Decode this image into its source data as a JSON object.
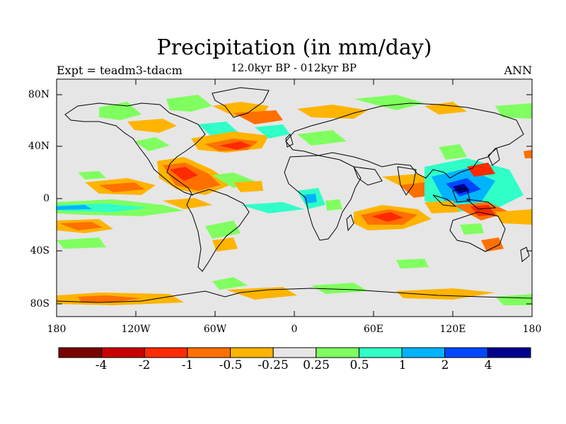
{
  "title": "Precipitation (in mm/day)",
  "subtitle": "12.0kyr BP - 012kyr BP",
  "left_label": "Expt = teadm3-tdacm",
  "right_label": "ANN",
  "lat_labels": [
    "80N",
    "40N",
    "0",
    "40S",
    "80S"
  ],
  "lon_labels": [
    "180",
    "120W",
    "60W",
    "0",
    "60E",
    "120E",
    "180"
  ],
  "colorbar": {
    "colors": [
      "#7a0000",
      "#c80000",
      "#ff2a00",
      "#ff7000",
      "#ffb400",
      "#e6e6e6",
      "#80ff60",
      "#30ffc8",
      "#00b4ff",
      "#0046ff",
      "#00008c"
    ],
    "labels": [
      "-4",
      "-2",
      "-1",
      "-0.5",
      "-0.25",
      "0.25",
      "0.5",
      "1",
      "2",
      "4"
    ]
  },
  "colors": {
    "background": "#e6e6e6",
    "coastline": "#000000"
  }
}
